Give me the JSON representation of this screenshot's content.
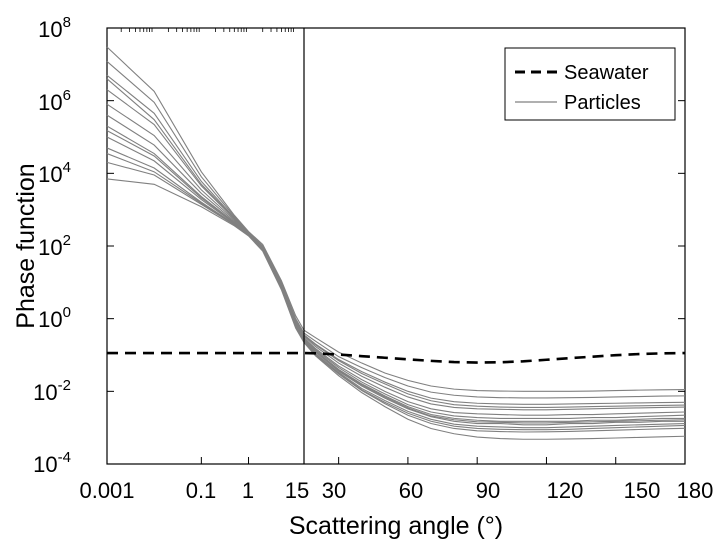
{
  "chart_data": {
    "type": "line",
    "xlabel": "Scattering angle (°)",
    "ylabel": "Phase function",
    "y_scale": "log",
    "ylim": [
      0.0001,
      100000000
    ],
    "x_axis": {
      "description": "broken axis: log scale for 0.001–15°, linear scale for 15–180°",
      "log_segment": {
        "range": [
          0.001,
          15
        ],
        "tick_labels": [
          "0.001",
          "0.1",
          "1",
          "15"
        ]
      },
      "linear_segment": {
        "range": [
          15,
          180
        ],
        "tick_labels": [
          "30",
          "60",
          "90",
          "120",
          "150",
          "180"
        ]
      }
    },
    "y_tick_labels": [
      {
        "base": "10",
        "exp": "-4"
      },
      {
        "base": "10",
        "exp": "-2"
      },
      {
        "base": "10",
        "exp": "0"
      },
      {
        "base": "10",
        "exp": "2"
      },
      {
        "base": "10",
        "exp": "4"
      },
      {
        "base": "10",
        "exp": "6"
      },
      {
        "base": "10",
        "exp": "8"
      }
    ],
    "legend_position": "top-right",
    "colors": {
      "seawater": "#000000",
      "particles": "#808080"
    },
    "series": [
      {
        "name": "Seawater",
        "style": "dashed",
        "x": [
          0.001,
          15,
          20,
          30,
          40,
          50,
          60,
          70,
          80,
          90,
          100,
          110,
          120,
          130,
          140,
          150,
          160,
          170,
          180
        ],
        "y": [
          0.113,
          0.113,
          0.111,
          0.103,
          0.093,
          0.084,
          0.076,
          0.069,
          0.064,
          0.062,
          0.063,
          0.067,
          0.074,
          0.082,
          0.09,
          0.099,
          0.106,
          0.111,
          0.113
        ]
      },
      {
        "name": "Particles",
        "style": "solid",
        "note": "ensemble of particle phase functions; each member shown",
        "x": [
          0.001,
          0.01,
          0.1,
          0.5,
          1,
          2,
          5,
          10,
          15,
          20,
          30,
          40,
          50,
          60,
          70,
          80,
          90,
          100,
          110,
          120,
          130,
          140,
          150,
          160,
          170,
          180
        ],
        "members": [
          [
            30000000.0,
            1800000.0,
            11000.0,
            700,
            250,
            110,
            11,
            1.2,
            0.48,
            0.3,
            0.12,
            0.06,
            0.032,
            0.02,
            0.014,
            0.0115,
            0.0105,
            0.0102,
            0.01,
            0.01,
            0.01,
            0.0102,
            0.0105,
            0.0108,
            0.011,
            0.0112
          ],
          [
            12000000.0,
            900000.0,
            8000.0,
            650,
            240,
            100,
            10,
            1.0,
            0.4,
            0.24,
            0.09,
            0.045,
            0.024,
            0.014,
            0.0095,
            0.0078,
            0.007,
            0.0067,
            0.0066,
            0.0066,
            0.0067,
            0.0068,
            0.007,
            0.0072,
            0.0074,
            0.0075
          ],
          [
            5000000.0,
            450000.0,
            6000.0,
            600,
            230,
            95,
            9.5,
            0.9,
            0.36,
            0.2,
            0.075,
            0.035,
            0.018,
            0.01,
            0.0065,
            0.0052,
            0.0047,
            0.0045,
            0.0044,
            0.0044,
            0.0045,
            0.0046,
            0.0047,
            0.0048,
            0.0049,
            0.005
          ],
          [
            2000000.0,
            220000.0,
            4500.0,
            560,
            225,
            90,
            9.0,
            0.85,
            0.33,
            0.17,
            0.06,
            0.026,
            0.013,
            0.007,
            0.0045,
            0.0036,
            0.0033,
            0.0032,
            0.0031,
            0.0031,
            0.0032,
            0.0033,
            0.0034,
            0.0035,
            0.0036,
            0.0037
          ],
          [
            800000.0,
            110000.0,
            3500.0,
            520,
            220,
            88,
            8.5,
            0.8,
            0.3,
            0.15,
            0.05,
            0.021,
            0.01,
            0.0052,
            0.0033,
            0.0026,
            0.0024,
            0.0023,
            0.0022,
            0.0022,
            0.0023,
            0.0023,
            0.0024,
            0.0025,
            0.0026,
            0.0027
          ],
          [
            400000.0,
            60000.0,
            2800.0,
            480,
            215,
            85,
            8.0,
            0.75,
            0.28,
            0.14,
            0.045,
            0.018,
            0.0085,
            0.0043,
            0.0027,
            0.0021,
            0.0019,
            0.0018,
            0.0018,
            0.0018,
            0.0018,
            0.0019,
            0.0019,
            0.002,
            0.0021,
            0.0022
          ],
          [
            200000.0,
            35000.0,
            2300.0,
            450,
            210,
            82,
            7.6,
            0.7,
            0.26,
            0.13,
            0.04,
            0.016,
            0.0075,
            0.0038,
            0.0023,
            0.0018,
            0.0016,
            0.0015,
            0.0015,
            0.0015,
            0.0015,
            0.0016,
            0.0016,
            0.0017,
            0.0018,
            0.0018
          ],
          [
            100000.0,
            22000.0,
            1900.0,
            420,
            205,
            80,
            7.2,
            0.66,
            0.25,
            0.12,
            0.036,
            0.014,
            0.0065,
            0.0033,
            0.002,
            0.0015,
            0.0013,
            0.0013,
            0.0012,
            0.0012,
            0.0013,
            0.0013,
            0.0014,
            0.0014,
            0.0015,
            0.0015
          ],
          [
            50000.0,
            14000.0,
            1600.0,
            400,
            200,
            78,
            6.8,
            0.62,
            0.24,
            0.11,
            0.033,
            0.012,
            0.0056,
            0.0028,
            0.0017,
            0.00125,
            0.0011,
            0.00105,
            0.001,
            0.001,
            0.00105,
            0.0011,
            0.00115,
            0.0012,
            0.00125,
            0.0013
          ],
          [
            20000.0,
            9000.0,
            1400.0,
            380,
            195,
            75,
            6.5,
            0.58,
            0.23,
            0.1,
            0.03,
            0.0105,
            0.0046,
            0.0022,
            0.0013,
            0.00095,
            0.00082,
            0.00078,
            0.00076,
            0.00077,
            0.00079,
            0.00082,
            0.00085,
            0.00089,
            0.00093,
            0.00096
          ],
          [
            7000.0,
            5000.0,
            1200.0,
            360,
            190,
            72,
            6.2,
            0.55,
            0.22,
            0.095,
            0.027,
            0.0092,
            0.0038,
            0.0017,
            0.00095,
            0.00068,
            0.00055,
            0.0005,
            0.00048,
            0.00048,
            0.00049,
            0.0005,
            0.00052,
            0.00054,
            0.00056,
            0.00058
          ],
          [
            4000000.0,
            300000.0,
            5000.0,
            580,
            228,
            93,
            9.2,
            0.88,
            0.34,
            0.19,
            0.07,
            0.031,
            0.016,
            0.0085,
            0.0055,
            0.0043,
            0.0039,
            0.0037,
            0.0036,
            0.0036,
            0.0037,
            0.0038,
            0.0039,
            0.004,
            0.0041,
            0.0042
          ],
          [
            150000.0,
            30000.0,
            2100.0,
            440,
            208,
            81,
            7.4,
            0.68,
            0.255,
            0.125,
            0.038,
            0.015,
            0.007,
            0.0035,
            0.0021,
            0.00165,
            0.00145,
            0.0014,
            0.00135,
            0.00135,
            0.0014,
            0.00145,
            0.0015,
            0.00155,
            0.0016,
            0.00165
          ],
          [
            35000.0,
            11000.0,
            1500.0,
            390,
            198,
            77,
            6.7,
            0.6,
            0.235,
            0.105,
            0.031,
            0.011,
            0.005,
            0.0025,
            0.0015,
            0.0011,
            0.00095,
            0.0009,
            0.00088,
            0.00088,
            0.0009,
            0.00095,
            0.001,
            0.00105,
            0.0011,
            0.00115
          ]
        ]
      }
    ]
  }
}
